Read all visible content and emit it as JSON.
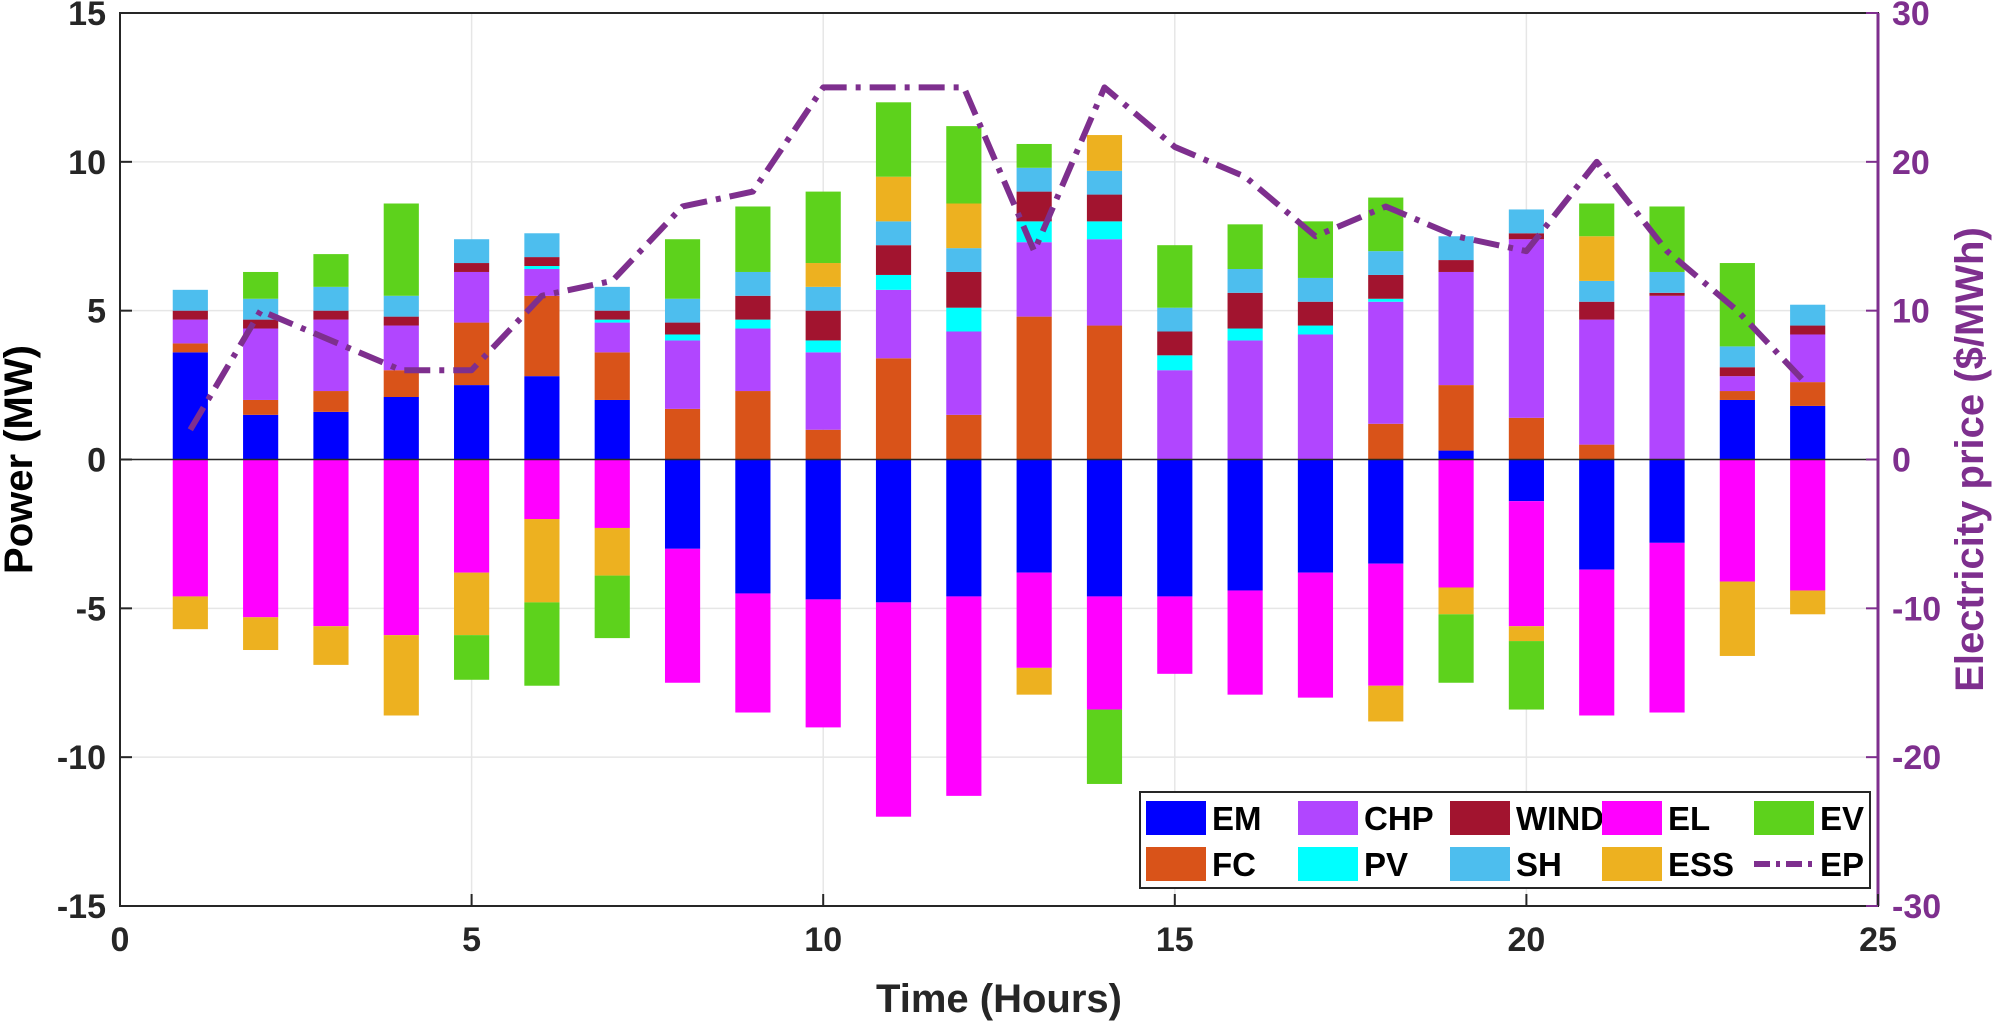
{
  "chart_data": {
    "type": "bar",
    "stacked": true,
    "x": [
      1,
      2,
      3,
      4,
      5,
      6,
      7,
      8,
      9,
      10,
      11,
      12,
      13,
      14,
      15,
      16,
      17,
      18,
      19,
      20,
      21,
      22,
      23,
      24
    ],
    "xlabel": "Time (Hours)",
    "ylabel": "Power (MW)",
    "y2label": "Electricity price ($/MWh)",
    "xlim": [
      0,
      25
    ],
    "ylim": [
      -15,
      15
    ],
    "y2lim": [
      -30,
      30
    ],
    "xticks": [
      "0",
      "5",
      "10",
      "15",
      "20",
      "25"
    ],
    "yticks": [
      "-15",
      "-10",
      "-5",
      "0",
      "5",
      "10",
      "15"
    ],
    "y2ticks": [
      "-30",
      "-20",
      "-10",
      "0",
      "10",
      "20",
      "30"
    ],
    "grid": true,
    "legend_position": "bottom-right",
    "colors": {
      "EM": "#0000ff",
      "FC": "#d95319",
      "CHP": "#b146ff",
      "PV": "#00ffff",
      "WIND": "#a2142f",
      "SH": "#4dbeee",
      "EL": "#ff00ff",
      "ESS": "#edb120",
      "EV": "#5dd21c",
      "EP": "#7e2f8e",
      "axis": "#000000",
      "axis2": "#7e2f8e",
      "grid": "#e6e6e6"
    },
    "series": [
      {
        "name": "EM",
        "values": [
          3.6,
          1.5,
          1.6,
          2.1,
          2.5,
          2.8,
          2.0,
          -3.0,
          -4.5,
          -4.7,
          -4.8,
          -4.6,
          -3.8,
          -4.6,
          -4.6,
          -4.4,
          -3.8,
          -3.5,
          0.3,
          -1.4,
          -3.7,
          -2.8,
          2.0,
          1.8
        ]
      },
      {
        "name": "FC",
        "values": [
          0.3,
          0.5,
          0.7,
          0.9,
          2.1,
          2.7,
          1.6,
          1.7,
          2.3,
          1.0,
          3.4,
          1.5,
          4.8,
          4.5,
          0,
          0,
          0,
          1.2,
          2.2,
          1.4,
          0.5,
          0,
          0.3,
          0.8
        ]
      },
      {
        "name": "CHP",
        "values": [
          0.8,
          2.4,
          2.4,
          1.5,
          1.7,
          0.9,
          1.0,
          2.3,
          2.1,
          2.6,
          2.3,
          2.8,
          2.5,
          2.9,
          3.0,
          4.0,
          4.2,
          4.1,
          3.8,
          6.0,
          4.2,
          5.5,
          0.5,
          1.6
        ]
      },
      {
        "name": "PV",
        "values": [
          0,
          0,
          0,
          0,
          0,
          0.1,
          0.1,
          0.2,
          0.3,
          0.4,
          0.5,
          0.8,
          0.7,
          0.6,
          0.5,
          0.4,
          0.3,
          0.1,
          0,
          0,
          0,
          0,
          0,
          0
        ]
      },
      {
        "name": "WIND",
        "values": [
          0.3,
          0.3,
          0.3,
          0.3,
          0.3,
          0.3,
          0.3,
          0.4,
          0.8,
          1.0,
          1.0,
          1.2,
          1.0,
          0.9,
          0.8,
          1.2,
          0.8,
          0.8,
          0.4,
          0.2,
          0.6,
          0.1,
          0.3,
          0.3
        ]
      },
      {
        "name": "SH",
        "values": [
          0.7,
          0.7,
          0.8,
          0.7,
          0.8,
          0.8,
          0.8,
          0.8,
          0.8,
          0.8,
          0.8,
          0.8,
          0.8,
          0.8,
          0.8,
          0.8,
          0.8,
          0.8,
          0.8,
          0.8,
          0.7,
          0.7,
          0.7,
          0.7
        ]
      },
      {
        "name": "EL",
        "values": [
          -4.6,
          -5.3,
          -5.6,
          -5.9,
          -3.8,
          -2.0,
          -2.3,
          -4.5,
          -4.0,
          -4.3,
          -7.2,
          -6.7,
          -3.2,
          -3.8,
          -2.6,
          -3.5,
          -4.2,
          -4.1,
          -4.3,
          -4.2,
          -4.9,
          -5.7,
          -4.1,
          -4.4
        ]
      },
      {
        "name": "ESS",
        "values": [
          -1.1,
          -1.1,
          -1.3,
          -2.7,
          -2.1,
          -2.8,
          -1.6,
          0,
          0,
          0.8,
          1.5,
          1.5,
          -0.9,
          1.2,
          0,
          0,
          0,
          -1.2,
          -0.9,
          -0.5,
          1.5,
          0,
          -2.5,
          -0.8
        ]
      },
      {
        "name": "EV",
        "values": [
          0,
          0.9,
          1.1,
          3.1,
          -1.5,
          -2.8,
          -2.1,
          2.0,
          2.2,
          2.4,
          2.5,
          2.6,
          0.8,
          -2.5,
          2.1,
          1.5,
          1.9,
          1.8,
          -2.3,
          -2.3,
          1.1,
          2.2,
          2.8,
          0
        ]
      }
    ],
    "line_series": {
      "name": "EP",
      "axis": "right",
      "values": [
        2,
        10,
        8,
        6,
        6,
        11,
        12,
        17,
        18,
        25,
        25,
        25,
        14,
        25,
        21,
        19,
        15,
        17,
        15,
        14,
        20,
        14,
        10,
        5
      ]
    },
    "legend": [
      "EM",
      "CHP",
      "WIND",
      "EL",
      "EV",
      "FC",
      "PV",
      "SH",
      "ESS",
      "EP"
    ]
  }
}
